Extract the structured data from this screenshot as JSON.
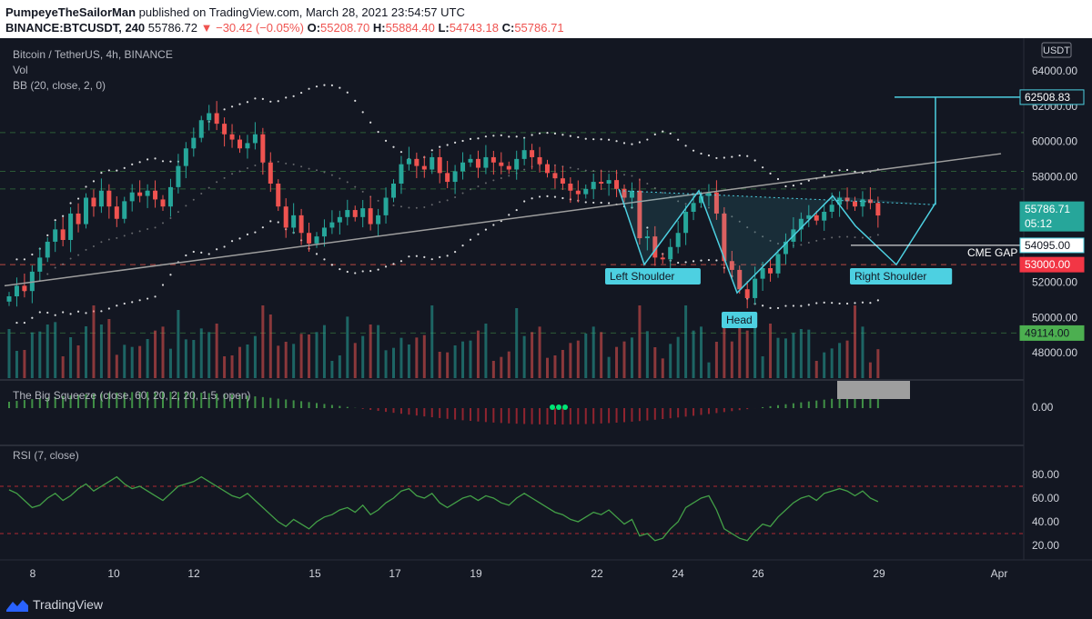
{
  "header": {
    "author": "PumpeyeTheSailorMan",
    "published": " published on TradingView.com, March 28, 2021 23:54:57 UTC",
    "symbol": "BINANCE:BTCUSDT, 240",
    "last": "55786.72",
    "change": "▼ −30.42 (−0.05%)",
    "o_label": "O:",
    "o_val": "55208.70",
    "h_label": "H:",
    "h_val": "55884.40",
    "l_label": "L:",
    "l_val": "54743.18",
    "c_label": "C:",
    "c_val": "55786.71"
  },
  "legend": {
    "pair": "Bitcoin / TetherUS, 4h, BINANCE",
    "vol": "Vol",
    "bb": "BB (20, close, 2, 0)",
    "squeeze": "The Big Squeeze (close, 60, 20, 2, 20, 1.5, open)",
    "rsi": "RSI (7, close)"
  },
  "price_axis": {
    "currency": "USDT",
    "ticks": [
      "64000.00",
      "62000.00",
      "60000.00",
      "58000.00",
      "56000.00",
      "54000.00",
      "52000.00",
      "50000.00",
      "48000.00"
    ],
    "tags": [
      {
        "label": "62508.83",
        "bg": "#131722",
        "border": "#4dd0e1",
        "color": "#ffffff"
      },
      {
        "label": "55786.71",
        "bg": "#26a69a",
        "border": "#26a69a",
        "color": "#ffffff"
      },
      {
        "label": "05:12",
        "bg": "#26a69a",
        "border": "#26a69a",
        "color": "#ffffff"
      },
      {
        "label": "54095.00",
        "bg": "#ffffff",
        "border": "#4dd0e1",
        "color": "#131722"
      },
      {
        "label": "53000.00",
        "bg": "#f23645",
        "border": "#f23645",
        "color": "#ffffff"
      },
      {
        "label": "49114.00",
        "bg": "#4caf50",
        "border": "#4caf50",
        "color": "#131722"
      }
    ]
  },
  "squeeze_axis": {
    "ticks": [
      "0.00"
    ]
  },
  "rsi_axis": {
    "ticks": [
      "80.00",
      "60.00",
      "40.00",
      "20.00"
    ]
  },
  "time_axis": {
    "ticks": [
      "8",
      "10",
      "12",
      "15",
      "17",
      "19",
      "22",
      "24",
      "26",
      "29",
      "Apr"
    ]
  },
  "annotations": {
    "left_shoulder": "Left Shoulder",
    "head": "Head",
    "right_shoulder": "Right Shoulder",
    "cme_gap": "CME GAP"
  },
  "footer": {
    "brand": "TradingView"
  },
  "colors": {
    "up": "#26a69a",
    "down": "#ef5350",
    "pattern": "#4dd0e1",
    "bg": "#131722"
  },
  "chart_data": {
    "type": "candlestick",
    "price_range": [
      47000,
      65000
    ],
    "rsi_range": [
      10,
      90
    ],
    "rsi_levels": [
      70,
      30
    ],
    "close": [
      51200,
      51800,
      51500,
      52600,
      53400,
      54300,
      55000,
      54400,
      55900,
      55300,
      56800,
      56300,
      57200,
      56300,
      55600,
      56600,
      57100,
      56900,
      57200,
      56700,
      56300,
      57400,
      58600,
      59600,
      60200,
      61200,
      61600,
      61000,
      60400,
      60100,
      59600,
      59900,
      60400,
      58800,
      57600,
      56300,
      55100,
      55800,
      54800,
      54200,
      54600,
      55100,
      55400,
      55700,
      56100,
      55700,
      56200,
      55300,
      55800,
      56800,
      57600,
      58700,
      59000,
      58600,
      58400,
      59100,
      58200,
      57700,
      58300,
      58800,
      59000,
      58500,
      59100,
      58800,
      58600,
      58400,
      59000,
      59500,
      59100,
      58700,
      58200,
      57900,
      57600,
      57200,
      57000,
      57300,
      57700,
      57600,
      57800,
      57300,
      56800,
      57200,
      54500,
      54600,
      53400,
      53300,
      54000,
      54800,
      56000,
      56500,
      56900,
      57100,
      55900,
      53200,
      52700,
      51600,
      51100,
      52200,
      52800,
      52500,
      53600,
      54300,
      55000,
      55600,
      55800,
      55500,
      56000,
      56400,
      56800,
      56600,
      56300,
      56700,
      56500,
      55790
    ],
    "rsi": [
      67,
      64,
      58,
      52,
      54,
      60,
      64,
      58,
      62,
      68,
      72,
      66,
      70,
      74,
      78,
      72,
      68,
      70,
      66,
      62,
      58,
      64,
      70,
      72,
      74,
      78,
      74,
      70,
      66,
      62,
      60,
      64,
      58,
      52,
      46,
      40,
      36,
      42,
      38,
      34,
      40,
      44,
      46,
      50,
      52,
      48,
      54,
      46,
      50,
      56,
      60,
      66,
      68,
      62,
      60,
      64,
      56,
      52,
      56,
      60,
      62,
      58,
      62,
      60,
      56,
      54,
      60,
      64,
      60,
      56,
      52,
      48,
      46,
      42,
      40,
      44,
      48,
      46,
      50,
      44,
      38,
      42,
      28,
      30,
      24,
      26,
      34,
      40,
      52,
      56,
      60,
      62,
      50,
      34,
      30,
      26,
      24,
      32,
      38,
      36,
      44,
      50,
      56,
      60,
      62,
      58,
      64,
      66,
      68,
      66,
      62,
      66,
      60,
      57
    ]
  }
}
